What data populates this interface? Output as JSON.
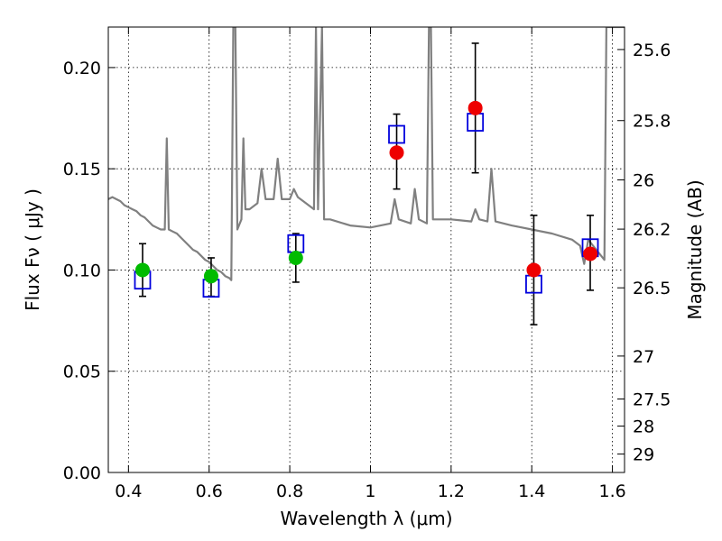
{
  "chart_data": {
    "type": "scatter",
    "xlabel": "Wavelength  λ (μm)",
    "ylabel": "Flux  Fν  ( μJy )",
    "y2label": "Magnitude (AB)",
    "xlim": [
      0.35,
      1.63
    ],
    "ylim": [
      0.0,
      0.22
    ],
    "x_ticks": [
      0.4,
      0.6,
      0.8,
      1.0,
      1.2,
      1.4,
      1.6
    ],
    "x_tick_labels": [
      "0.4",
      "0.6",
      "0.8",
      "1",
      "1.2",
      "1.4",
      "1.6"
    ],
    "y_ticks": [
      0.0,
      0.05,
      0.1,
      0.15,
      0.2
    ],
    "y_tick_labels": [
      "0.00",
      "0.05",
      "0.10",
      "0.15",
      "0.20"
    ],
    "y2_ticks": [
      {
        "label": "25.6",
        "flux": 0.2089
      },
      {
        "label": "25.8",
        "flux": 0.1738
      },
      {
        "label": "26",
        "flux": 0.1445
      },
      {
        "label": "26.2",
        "flux": 0.1202
      },
      {
        "label": "26.5",
        "flux": 0.0912
      },
      {
        "label": "27",
        "flux": 0.0575
      },
      {
        "label": "27.5",
        "flux": 0.0363
      },
      {
        "label": "28",
        "flux": 0.0229
      },
      {
        "label": "29",
        "flux": 0.0091
      }
    ],
    "grid": true,
    "colors": {
      "spectrum": "#808080",
      "model_box": "#0000dd",
      "optical_point": "#00bb00",
      "nir_point": "#ee0000",
      "errorbar": "#000000"
    },
    "series": [
      {
        "type": "line",
        "points": [
          [
            0.35,
            0.135
          ],
          [
            0.36,
            0.136
          ],
          [
            0.37,
            0.135
          ],
          [
            0.38,
            0.134
          ],
          [
            0.39,
            0.132
          ],
          [
            0.4,
            0.131
          ],
          [
            0.41,
            0.13
          ],
          [
            0.42,
            0.129
          ],
          [
            0.43,
            0.127
          ],
          [
            0.44,
            0.126
          ],
          [
            0.45,
            0.124
          ],
          [
            0.46,
            0.122
          ],
          [
            0.47,
            0.121
          ],
          [
            0.48,
            0.12
          ],
          [
            0.49,
            0.12
          ],
          [
            0.495,
            0.165
          ],
          [
            0.5,
            0.12
          ],
          [
            0.51,
            0.119
          ],
          [
            0.52,
            0.118
          ],
          [
            0.53,
            0.116
          ],
          [
            0.54,
            0.114
          ],
          [
            0.55,
            0.112
          ],
          [
            0.56,
            0.11
          ],
          [
            0.57,
            0.109
          ],
          [
            0.58,
            0.107
          ],
          [
            0.59,
            0.105
          ],
          [
            0.6,
            0.104
          ],
          [
            0.61,
            0.102
          ],
          [
            0.62,
            0.1
          ],
          [
            0.63,
            0.099
          ],
          [
            0.64,
            0.097
          ],
          [
            0.65,
            0.096
          ],
          [
            0.655,
            0.095
          ],
          [
            0.66,
            0.22
          ],
          [
            0.665,
            0.22
          ],
          [
            0.67,
            0.12
          ],
          [
            0.68,
            0.125
          ],
          [
            0.685,
            0.165
          ],
          [
            0.69,
            0.13
          ],
          [
            0.7,
            0.13
          ],
          [
            0.72,
            0.133
          ],
          [
            0.73,
            0.15
          ],
          [
            0.74,
            0.135
          ],
          [
            0.76,
            0.135
          ],
          [
            0.77,
            0.155
          ],
          [
            0.78,
            0.135
          ],
          [
            0.8,
            0.135
          ],
          [
            0.81,
            0.14
          ],
          [
            0.82,
            0.136
          ],
          [
            0.84,
            0.133
          ],
          [
            0.86,
            0.13
          ],
          [
            0.865,
            0.22
          ],
          [
            0.87,
            0.13
          ],
          [
            0.88,
            0.22
          ],
          [
            0.885,
            0.125
          ],
          [
            0.9,
            0.125
          ],
          [
            0.95,
            0.122
          ],
          [
            1.0,
            0.121
          ],
          [
            1.05,
            0.123
          ],
          [
            1.06,
            0.135
          ],
          [
            1.07,
            0.125
          ],
          [
            1.1,
            0.123
          ],
          [
            1.11,
            0.14
          ],
          [
            1.12,
            0.125
          ],
          [
            1.14,
            0.123
          ],
          [
            1.145,
            0.22
          ],
          [
            1.15,
            0.22
          ],
          [
            1.155,
            0.125
          ],
          [
            1.2,
            0.125
          ],
          [
            1.25,
            0.124
          ],
          [
            1.26,
            0.13
          ],
          [
            1.27,
            0.125
          ],
          [
            1.29,
            0.124
          ],
          [
            1.3,
            0.15
          ],
          [
            1.31,
            0.124
          ],
          [
            1.35,
            0.122
          ],
          [
            1.4,
            0.12
          ],
          [
            1.45,
            0.118
          ],
          [
            1.5,
            0.115
          ],
          [
            1.52,
            0.112
          ],
          [
            1.53,
            0.103
          ],
          [
            1.54,
            0.115
          ],
          [
            1.56,
            0.11
          ],
          [
            1.58,
            0.105
          ],
          [
            1.585,
            0.22
          ],
          [
            1.59,
            0.22
          ],
          [
            1.6,
            0.22
          ],
          [
            1.63,
            0.22
          ]
        ]
      },
      {
        "type": "marker",
        "x": [
          0.435,
          0.605,
          0.815,
          1.065,
          1.26,
          1.405,
          1.545
        ],
        "y": [
          0.095,
          0.091,
          0.113,
          0.167,
          0.173,
          0.093,
          0.111
        ]
      },
      {
        "type": "errorbar",
        "x": [
          0.435,
          0.605,
          0.815
        ],
        "y": [
          0.1,
          0.097,
          0.106
        ],
        "yerr_low": [
          0.087,
          0.087,
          0.094
        ],
        "yerr_high": [
          0.113,
          0.106,
          0.118
        ]
      },
      {
        "type": "errorbar",
        "x": [
          1.065,
          1.26,
          1.405,
          1.545
        ],
        "y": [
          0.158,
          0.18,
          0.1,
          0.108
        ],
        "yerr_low": [
          0.14,
          0.148,
          0.073,
          0.09
        ],
        "yerr_high": [
          0.177,
          0.212,
          0.127,
          0.127
        ]
      }
    ]
  }
}
